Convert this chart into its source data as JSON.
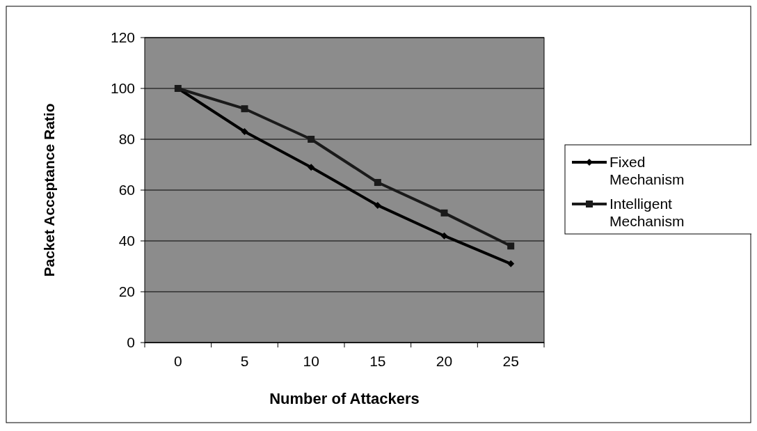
{
  "chart_data": {
    "type": "line",
    "xlabel": "Number of Attackers",
    "ylabel": "Packet Acceptance Ratio",
    "categories": [
      "0",
      "5",
      "10",
      "15",
      "20",
      "25"
    ],
    "series": [
      {
        "name": "Fixed Mechanism",
        "color": "#000000",
        "marker": "diamond",
        "values": [
          100,
          83,
          69,
          54,
          42,
          31
        ]
      },
      {
        "name": "Intelligent Mechanism",
        "color": "#1a1a1a",
        "marker": "square",
        "values": [
          100,
          92,
          80,
          63,
          51,
          38
        ]
      }
    ],
    "ylim": [
      0,
      120
    ],
    "yticks": [
      0,
      20,
      40,
      60,
      80,
      100,
      120
    ],
    "grid": "y",
    "legend": "right",
    "line_style": "solid"
  }
}
